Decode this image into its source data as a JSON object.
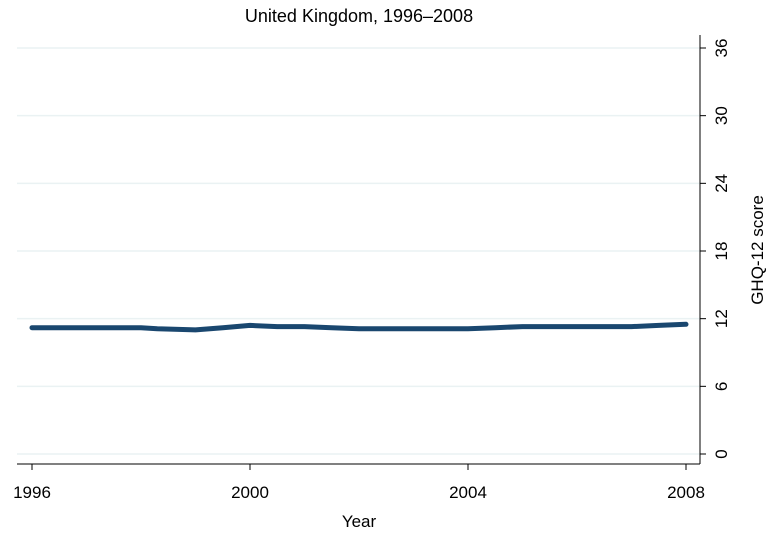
{
  "chart_data": {
    "type": "line",
    "title": "United Kingdom, 1996–2008",
    "xlabel": "Year",
    "ylabel": "GHQ-12 score",
    "xlim": [
      1996,
      2008
    ],
    "ylim": [
      0,
      36
    ],
    "x_ticks": [
      1996,
      2000,
      2004,
      2008
    ],
    "x_tick_labels": [
      "1996",
      "2000",
      "2004",
      "2008"
    ],
    "y_ticks": [
      0,
      6,
      12,
      18,
      24,
      30,
      36
    ],
    "y_tick_labels": [
      "0",
      "6",
      "12",
      "18",
      "24",
      "30",
      "36"
    ],
    "y_axis_position": "right",
    "grid": true,
    "series": [
      {
        "color": "#1a476f",
        "x": [
          1996,
          1997,
          1998,
          1998.3,
          1999,
          1999.5,
          2000,
          2000.5,
          2001,
          2001.5,
          2002,
          2003,
          2004,
          2004.5,
          2005,
          2006,
          2007,
          2007.5,
          2008
        ],
        "y": [
          11.2,
          11.2,
          11.2,
          11.1,
          11.0,
          11.2,
          11.4,
          11.3,
          11.3,
          11.2,
          11.1,
          11.1,
          11.1,
          11.2,
          11.3,
          11.3,
          11.3,
          11.4,
          11.5
        ]
      }
    ]
  }
}
